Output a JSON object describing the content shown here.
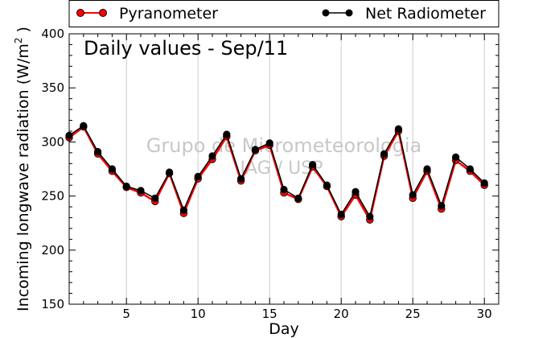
{
  "chart_data": {
    "type": "line",
    "title": "Daily values - Sep/11",
    "xlabel": "Day",
    "ylabel_main": "Incoming longwave radiation (W/m",
    "ylabel_sup": "2",
    "ylabel_end": " )",
    "watermark": [
      "Grupo de Micrometeorologia",
      "IAG / USP"
    ],
    "xlim": [
      1,
      31
    ],
    "ylim": [
      150,
      400
    ],
    "xticks": [
      5,
      10,
      15,
      20,
      25,
      30
    ],
    "yticks": [
      150,
      200,
      250,
      300,
      350,
      400
    ],
    "grid": "vertical",
    "legend_position": "top",
    "x": [
      1,
      2,
      3,
      4,
      5,
      6,
      7,
      8,
      9,
      10,
      11,
      12,
      13,
      14,
      15,
      16,
      17,
      18,
      19,
      20,
      21,
      22,
      23,
      24,
      25,
      26,
      27,
      28,
      29,
      30
    ],
    "series": [
      {
        "name": "Pyranometer",
        "color": "#ff0000",
        "values": [
          304,
          314,
          289,
          273,
          258,
          253,
          245,
          271,
          234,
          266,
          284,
          305,
          264,
          292,
          297,
          253,
          247,
          277,
          259,
          231,
          251,
          228,
          287,
          310,
          248,
          273,
          238,
          283,
          273,
          260
        ]
      },
      {
        "name": "Net Radiometer",
        "color": "#000000",
        "values": [
          306,
          315,
          291,
          275,
          259,
          255,
          248,
          272,
          237,
          268,
          287,
          307,
          266,
          293,
          299,
          256,
          248,
          279,
          260,
          233,
          254,
          231,
          289,
          312,
          251,
          275,
          241,
          286,
          275,
          262
        ]
      }
    ]
  }
}
